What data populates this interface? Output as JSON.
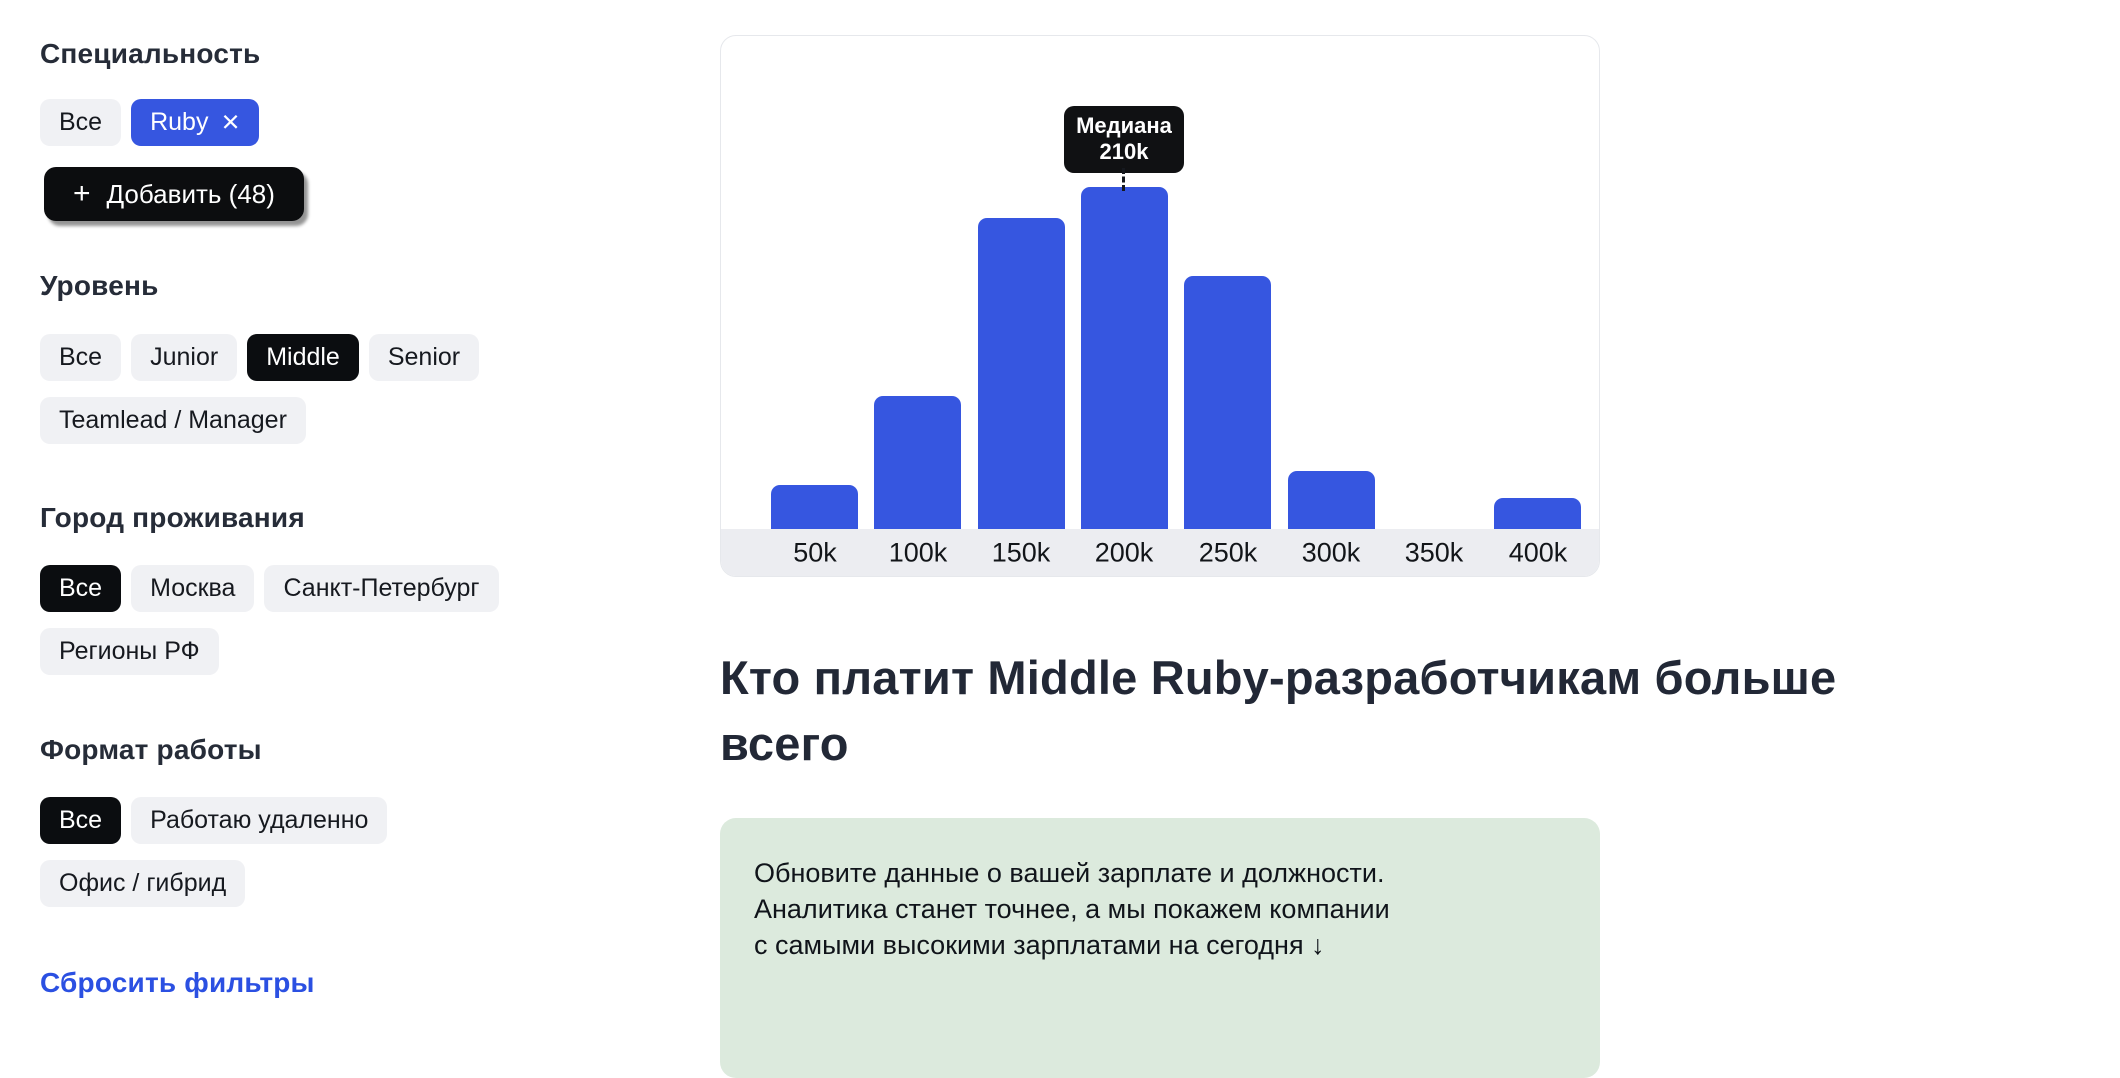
{
  "sidebar": {
    "sections": [
      {
        "title": "Специальность",
        "chips": [
          {
            "label": "Все",
            "state": "default"
          },
          {
            "label": "Ruby",
            "state": "selected-blue",
            "close_icon": "×"
          }
        ]
      },
      {
        "title": "Уровень",
        "chips": [
          {
            "label": "Все",
            "state": "default"
          },
          {
            "label": "Junior",
            "state": "default"
          },
          {
            "label": "Middle",
            "state": "selected-black"
          },
          {
            "label": "Senior",
            "state": "default"
          },
          {
            "label": "Teamlead / Manager",
            "state": "default"
          }
        ]
      },
      {
        "title": "Город проживания",
        "chips": [
          {
            "label": "Все",
            "state": "selected-black"
          },
          {
            "label": "Москва",
            "state": "default"
          },
          {
            "label": "Санкт-Петербург",
            "state": "default"
          },
          {
            "label": "Регионы РФ",
            "state": "default"
          }
        ]
      },
      {
        "title": "Формат работы",
        "chips": [
          {
            "label": "Все",
            "state": "selected-black"
          },
          {
            "label": "Работаю удаленно",
            "state": "default"
          },
          {
            "label": "Офис / гибрид",
            "state": "default"
          }
        ]
      }
    ],
    "add_button": {
      "icon": "+",
      "label": "Добавить (48)"
    },
    "reset_link": "Сбросить фильтры"
  },
  "chart_data": {
    "type": "bar",
    "title": "",
    "categories": [
      "50k",
      "100k",
      "150k",
      "200k",
      "250k",
      "300k",
      "350k",
      "400k"
    ],
    "values_pct_of_max": [
      13,
      39,
      91,
      100,
      74,
      17,
      0,
      9
    ],
    "median_label": "Медиана",
    "median_value": "210k",
    "median_bin": "200k",
    "bar_color": "#3656e0",
    "axis_band_color": "#ecedf1",
    "legend": "none",
    "grid": "off"
  },
  "heading": {
    "line1": "Кто платит Middle Ruby-разработчикам больше",
    "line2": "всего"
  },
  "info_box": {
    "background": "#dceadd",
    "lines": [
      "Обновите данные о вашей зарплате и должности.",
      "Аналитика станет точнее, а мы покажем компании",
      "с самыми высокими зарплатами на сегодня ↓"
    ]
  },
  "colors": {
    "accent_blue": "#3656e0",
    "link_blue": "#2b50e2",
    "selected_black": "#0b0d10",
    "chip_gray": "#f0f1f4",
    "heading_dark": "#222836"
  }
}
